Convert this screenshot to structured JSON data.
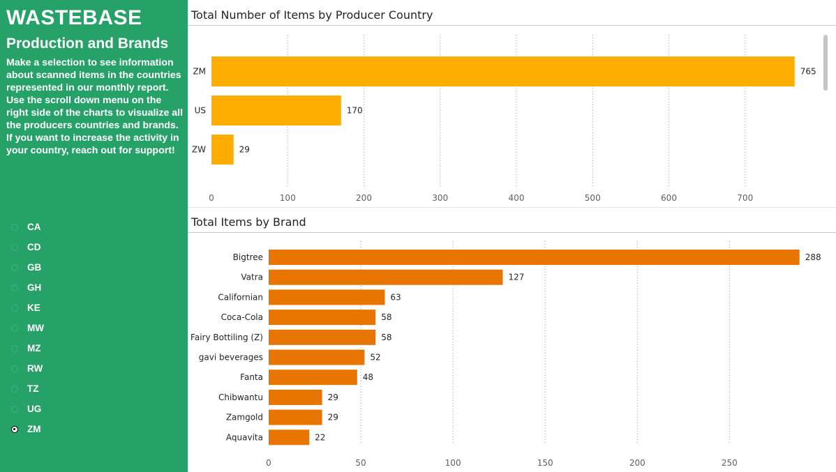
{
  "sidebar": {
    "title": "WASTEBASE",
    "subtitle": "Production and Brands",
    "description": "Make a selection to see information about scanned items in the countries represented in our monthly report.  Use the scroll down menu on the right side of the charts to visualize all the producers countries and brands.\nIf you want to increase the activity in your country, reach out for support!",
    "slicer": {
      "options": [
        "CA",
        "CD",
        "GB",
        "GH",
        "KE",
        "MW",
        "MZ",
        "RW",
        "TZ",
        "UG",
        "ZM"
      ],
      "selected": "ZM"
    }
  },
  "colors": {
    "sidebar_bg": "#26a269",
    "country_bar": "#ffad00",
    "brand_bar": "#e87500"
  },
  "chart_data": [
    {
      "type": "bar",
      "orientation": "horizontal",
      "title": "Total Number of Items by Producer Country",
      "categories": [
        "ZM",
        "US",
        "ZW"
      ],
      "values": [
        765,
        170,
        29
      ],
      "xticks": [
        0,
        100,
        200,
        300,
        400,
        500,
        600,
        700
      ],
      "xlim": [
        0,
        800
      ],
      "grid": "vertical dotted",
      "color": "#ffad00",
      "scrollbar": true
    },
    {
      "type": "bar",
      "orientation": "horizontal",
      "title": "Total Items by Brand",
      "categories": [
        "Bigtree",
        "Vatra",
        "Californian",
        "Coca-Cola",
        "Fairy Bottiling (Z)",
        "gavi beverages",
        "Fanta",
        "Chibwantu",
        "Zamgold",
        "Aquavita"
      ],
      "values": [
        288,
        127,
        63,
        58,
        58,
        52,
        48,
        29,
        29,
        22
      ],
      "xticks": [
        0,
        50,
        100,
        150,
        200,
        250
      ],
      "xlim": [
        0,
        290
      ],
      "grid": "vertical dotted",
      "color": "#e87500"
    }
  ]
}
